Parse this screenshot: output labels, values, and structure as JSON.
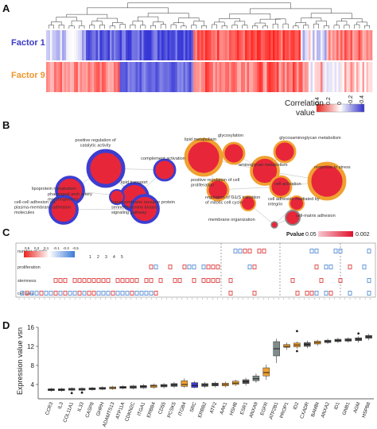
{
  "panels": {
    "a": "A",
    "b": "B",
    "c": "C",
    "d": "D"
  },
  "colors": {
    "factor1": "#3a3ac8",
    "factor9": "#f0962a",
    "red": "#e8261f",
    "blue": "#3d3dd0",
    "grey_box": "#7f8c8c",
    "orange_box": "#f0a030"
  },
  "panel_a": {
    "rows": [
      "Factor 1",
      "Factor 9"
    ],
    "legend_title_1": "Correlation",
    "legend_title_2": "value",
    "legend_ticks": [
      "0.4",
      "0.2",
      "0",
      "-0.2",
      "-0.4"
    ]
  },
  "panel_b": {
    "terms": [
      {
        "label": "positive regulation of catalytic activity",
        "group": "blue",
        "size": 3
      },
      {
        "label": "lipoprotein metabolism",
        "group": "blue",
        "size": 2
      },
      {
        "label": "complement activation",
        "group": "blue",
        "size": 1
      },
      {
        "label": "lipid transport",
        "group": "blue",
        "size": 2
      },
      {
        "label": "pharyngeal arch artery morphogenesis",
        "group": "blue",
        "size": 0
      },
      {
        "label": "cell-cell adhesion via plasma-membrane adhesion molecules",
        "group": "blue",
        "size": 2
      },
      {
        "label": "transmembrane receptor protein serine/threonine kinase signaling pathway",
        "group": "blue",
        "size": 2
      },
      {
        "label": "lipid metabolism",
        "group": "orange",
        "size": 3
      },
      {
        "label": "glycosylation",
        "group": "orange",
        "size": 1
      },
      {
        "label": "glycosaminoglycan metabolism",
        "group": "orange",
        "size": 1
      },
      {
        "label": "aminoglycan metabolism",
        "group": "orange",
        "size": 2
      },
      {
        "label": "positive regulation of cell proliferation",
        "group": "orange",
        "size": 1
      },
      {
        "label": "cell activation",
        "group": "orange",
        "size": 1
      },
      {
        "label": "response to stress",
        "group": "orange",
        "size": 3
      },
      {
        "label": "regulation of G1/S transition of mitotic cell cycle",
        "group": "orange",
        "size": 0
      },
      {
        "label": "cell adhesion mediated by integrin",
        "group": "orange",
        "size": 0
      },
      {
        "label": "membrane organization",
        "group": "grey",
        "size": 4
      },
      {
        "label": "cell-matrix adhesion",
        "group": "grey",
        "size": 0
      }
    ],
    "pvalue_label": "Pvalue",
    "pvalue_min": "0.05",
    "pvalue_max": "0.002"
  },
  "panel_c": {
    "row_labels": [
      "number of cells",
      "proliferation",
      "stemness",
      "cell area"
    ],
    "scale_ticks": [
      "0.5",
      "0.3",
      "0.1",
      "-0.1",
      "-0.3",
      "-0.5"
    ],
    "size_ticks": [
      "1",
      "2",
      "3",
      "4",
      "5"
    ]
  },
  "panel_d": {
    "ylabel": "Expression value vsn",
    "yticks": [
      "4",
      "8",
      "12",
      "16"
    ],
    "ylim": [
      1,
      16
    ]
  },
  "chart_data": {
    "type": "box",
    "ylabel": "Expression value vsn",
    "ylim": [
      1,
      16
    ],
    "categories": [
      "CCR3",
      "IL3",
      "COL11A1",
      "IL33",
      "CASP8",
      "GHRH",
      "ADAMTS13",
      "ATP11A",
      "CDKN2C",
      "ITGA1",
      "ERBB4",
      "CD55",
      "PCSK5",
      "ITGB4",
      "SRC",
      "ERBB2",
      "ATF2",
      "AAK1",
      "HSHB",
      "ESR1",
      "ANXA9",
      "EGFR",
      "ATP2B1",
      "PROP1",
      "ID2",
      "CXADR",
      "BAMBI",
      "ANXA2",
      "ID1",
      "GNB1",
      "AGM",
      "HSPB8"
    ],
    "series": [
      {
        "median": [
          2.9,
          2.9,
          3.0,
          3.0,
          3.1,
          3.2,
          3.3,
          3.4,
          3.5,
          3.6,
          3.7,
          3.8,
          3.9,
          4.0,
          3.8,
          3.9,
          4.0,
          4.0,
          4.3,
          4.6,
          5.2,
          6.5,
          11.5,
          12.0,
          12.3,
          12.4,
          12.8,
          13.0,
          13.2,
          13.3,
          13.5,
          14.0
        ],
        "q1": [
          2.7,
          2.7,
          2.8,
          2.8,
          2.9,
          3.0,
          3.1,
          3.2,
          3.2,
          3.3,
          3.4,
          3.5,
          3.6,
          3.6,
          3.4,
          3.6,
          3.7,
          3.7,
          4.0,
          4.2,
          4.8,
          5.8,
          10.0,
          11.8,
          11.9,
          12.0,
          12.5,
          12.8,
          13.0,
          13.1,
          13.2,
          13.7
        ],
        "q3": [
          3.1,
          3.1,
          3.2,
          3.2,
          3.3,
          3.4,
          3.5,
          3.6,
          3.7,
          3.8,
          3.9,
          4.0,
          4.2,
          4.8,
          4.4,
          4.2,
          4.3,
          4.3,
          4.7,
          5.0,
          5.8,
          7.5,
          13.0,
          12.4,
          12.7,
          12.8,
          13.1,
          13.3,
          13.5,
          13.6,
          13.8,
          14.3
        ],
        "whisker_low": [
          2.5,
          2.5,
          2.6,
          2.6,
          2.7,
          2.8,
          2.9,
          3.0,
          3.0,
          3.1,
          3.1,
          3.2,
          3.3,
          3.3,
          3.2,
          3.3,
          3.4,
          3.4,
          3.7,
          3.8,
          4.4,
          5.0,
          8.5,
          11.3,
          11.5,
          11.6,
          12.1,
          12.5,
          12.7,
          12.8,
          12.8,
          13.3
        ],
        "whisker_high": [
          3.3,
          3.3,
          3.4,
          3.4,
          3.5,
          3.6,
          3.7,
          3.8,
          3.9,
          4.1,
          4.2,
          4.3,
          4.5,
          5.3,
          4.7,
          4.5,
          4.6,
          4.6,
          5.0,
          5.4,
          6.3,
          8.2,
          13.6,
          12.8,
          13.0,
          13.2,
          13.4,
          13.6,
          13.8,
          13.9,
          14.1,
          14.6
        ],
        "outliers": [
          [],
          [],
          [
            2.2
          ],
          [
            2.3
          ],
          [],
          [],
          [],
          [],
          [],
          [],
          [],
          [],
          [],
          [],
          [],
          [],
          [],
          [],
          [],
          [],
          [],
          [],
          [],
          [],
          [
            11.0,
            15.2
          ],
          [],
          [],
          [],
          [],
          [],
          [
            14.7
          ],
          []
        ]
      }
    ],
    "box_colors": [
      "black",
      "black",
      "black",
      "black",
      "black",
      "black",
      "orange",
      "black",
      "black",
      "black",
      "orange",
      "black",
      "black",
      "orange",
      "blue",
      "black",
      "black",
      "orange",
      "orange",
      "black",
      "grey",
      "orange",
      "grey",
      "orange",
      "orange",
      "black",
      "orange",
      "black",
      "black",
      "black",
      "black",
      "black"
    ]
  }
}
